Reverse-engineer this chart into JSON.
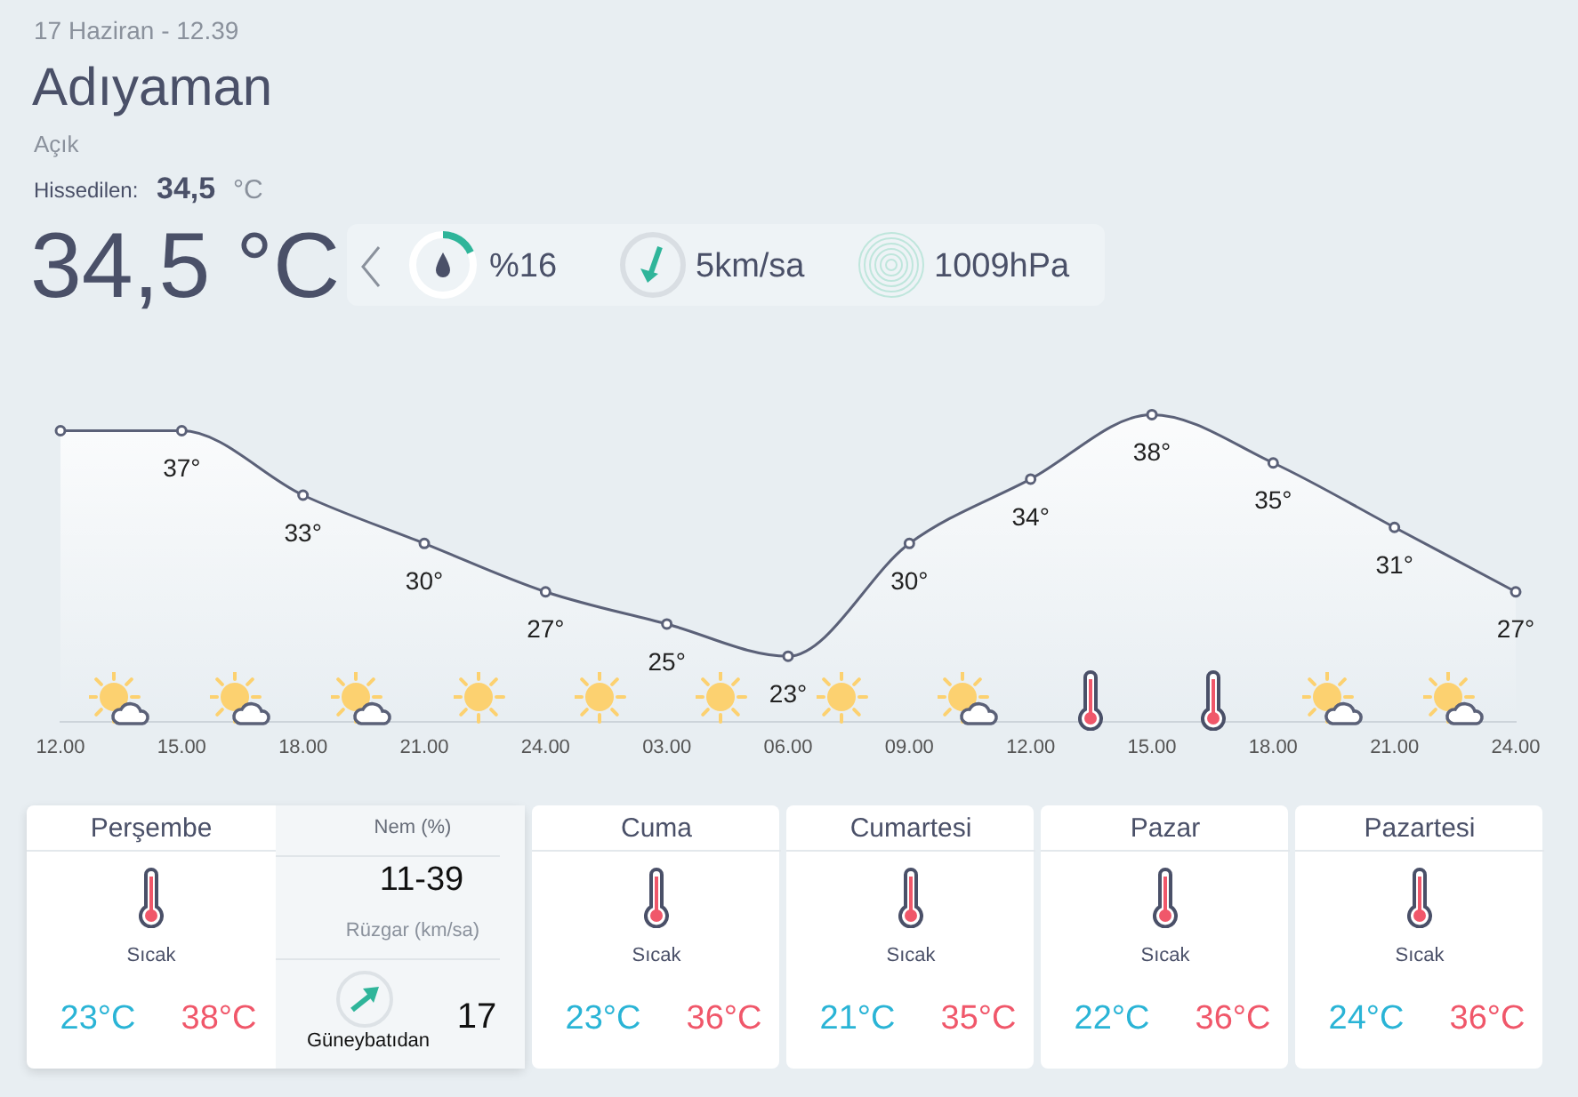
{
  "chart_data": [
    {
      "type": "other",
      "title": "Adıyaman",
      "subtitle": "17 Haziran - 12.39",
      "annotations": [
        "Açık",
        "Hissedilen:",
        "34,5",
        "°C",
        "34,5 °C",
        "%16",
        "5km/sa",
        "1009hPa"
      ]
    },
    {
      "type": "area",
      "categories": [
        "12.00",
        "15.00",
        "18.00",
        "21.00",
        "24.00",
        "03.00",
        "06.00",
        "09.00",
        "12.00",
        "15.00",
        "18.00",
        "21.00",
        "24.00"
      ],
      "tick_labels": "x",
      "marker": "circle",
      "series": [
        {
          "color": "#5b6178",
          "values": [
            37,
            37,
            33,
            30,
            27,
            25,
            23,
            30,
            34,
            38,
            35,
            31,
            27
          ],
          "value_labels": [
            null,
            "37°",
            "33°",
            "30°",
            "27°",
            "25°",
            "23°",
            "30°",
            "34°",
            "38°",
            "35°",
            "31°",
            "27°"
          ]
        }
      ]
    },
    {
      "type": "other",
      "title": "Perşembe",
      "annotations": [
        "Sıcak",
        "23°C",
        "38°C",
        "Nem (%)",
        "11-39",
        "Rüzgar (km/sa)",
        "Güneybatıdan",
        "17"
      ]
    },
    {
      "type": "other",
      "title": "Cuma",
      "annotations": [
        "Sıcak",
        "23°C",
        "36°C"
      ]
    },
    {
      "type": "other",
      "title": "Cumartesi",
      "annotations": [
        "Sıcak",
        "21°C",
        "35°C"
      ]
    },
    {
      "type": "other",
      "title": "Pazar",
      "annotations": [
        "Sıcak",
        "22°C",
        "36°C"
      ]
    },
    {
      "type": "other",
      "title": "Pazartesi",
      "annotations": [
        "Sıcak",
        "24°C",
        "36°C"
      ]
    }
  ]
}
